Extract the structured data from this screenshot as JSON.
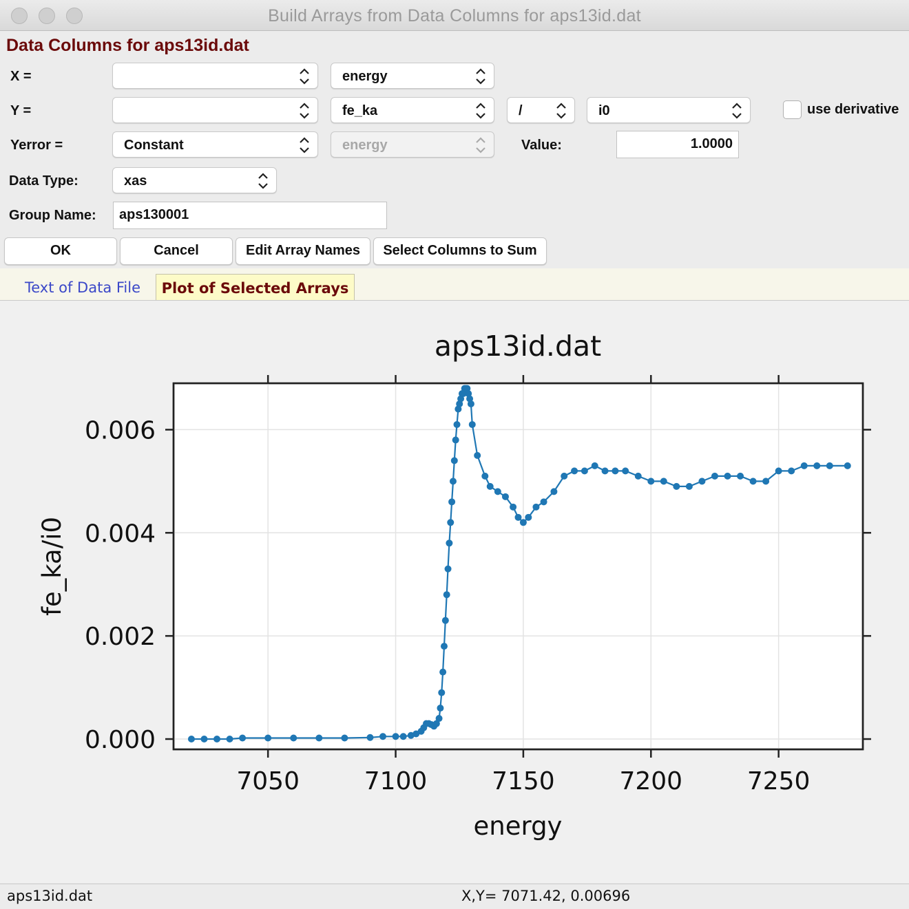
{
  "window": {
    "title": "Build Arrays from Data Columns for aps13id.dat"
  },
  "section_title": "Data Columns for aps13id.dat",
  "rows": {
    "x": {
      "label": "X =",
      "first": "",
      "second": "energy"
    },
    "y": {
      "label": "Y =",
      "first": "",
      "second": "fe_ka",
      "op": "/",
      "third": "i0",
      "derivative_label": "use derivative",
      "derivative_checked": false
    },
    "yerror": {
      "label": "Yerror =",
      "type": "Constant",
      "column": "energy",
      "value_label": "Value:",
      "value": "1.0000"
    },
    "datatype": {
      "label": "Data Type:",
      "value": "xas"
    },
    "groupname": {
      "label": "Group Name:",
      "value": "aps130001"
    }
  },
  "buttons": {
    "ok": "OK",
    "cancel": "Cancel",
    "edit": "Edit Array Names",
    "sum": "Select Columns to Sum"
  },
  "tabs": [
    {
      "label": "Text of Data File",
      "active": false
    },
    {
      "label": "Plot of Selected Arrays",
      "active": true
    }
  ],
  "status": {
    "left": "aps13id.dat",
    "right": "X,Y= 7071.42, 0.00696"
  },
  "colors": {
    "series": "#1f77b4",
    "title_red": "#6b0a0a",
    "tab_blue": "#3b48c8",
    "tab_active_bg": "#fdfbc8"
  },
  "chart_data": {
    "type": "line",
    "title": "aps13id.dat",
    "xlabel": "energy",
    "ylabel": "fe_ka/i0",
    "xlim": [
      7013,
      7283
    ],
    "ylim": [
      -0.0002,
      0.0069
    ],
    "xticks": [
      7050,
      7100,
      7150,
      7200,
      7250
    ],
    "xtick_labels": [
      "7050",
      "7100",
      "7150",
      "7200",
      "7250"
    ],
    "yticks": [
      0,
      0.002,
      0.004,
      0.006
    ],
    "ytick_labels": [
      "0.000",
      "0.002",
      "0.004",
      "0.006"
    ],
    "grid": true,
    "markers": true,
    "series": [
      {
        "x": [
          7020,
          7025,
          7030,
          7035,
          7040,
          7050,
          7060,
          7070,
          7080,
          7090,
          7095,
          7100,
          7103,
          7106,
          7108,
          7110,
          7111,
          7112,
          7113,
          7114,
          7115,
          7116,
          7117,
          7117.5,
          7118,
          7118.5,
          7119,
          7119.5,
          7120,
          7120.5,
          7121,
          7121.5,
          7122,
          7122.5,
          7123,
          7123.5,
          7124,
          7124.5,
          7125,
          7125.5,
          7126,
          7126.5,
          7127,
          7127.5,
          7128,
          7128.5,
          7129,
          7129.5,
          7130,
          7132,
          7135,
          7137,
          7140,
          7143,
          7146,
          7148,
          7150,
          7152,
          7155,
          7158,
          7162,
          7166,
          7170,
          7174,
          7178,
          7182,
          7186,
          7190,
          7195,
          7200,
          7205,
          7210,
          7215,
          7220,
          7225,
          7230,
          7235,
          7240,
          7245,
          7250,
          7255,
          7260,
          7265,
          7270,
          7277
        ],
        "y": [
          0,
          0,
          0,
          0,
          2e-05,
          2e-05,
          2e-05,
          2e-05,
          2e-05,
          3e-05,
          5e-05,
          5e-05,
          5e-05,
          7e-05,
          0.0001,
          0.00015,
          0.00022,
          0.0003,
          0.0003,
          0.00028,
          0.00025,
          0.0003,
          0.0004,
          0.0006,
          0.0009,
          0.0013,
          0.0018,
          0.0023,
          0.0028,
          0.0033,
          0.0038,
          0.0042,
          0.0046,
          0.005,
          0.0054,
          0.0058,
          0.0061,
          0.0064,
          0.0065,
          0.0066,
          0.0067,
          0.0067,
          0.0068,
          0.0068,
          0.0068,
          0.0067,
          0.0066,
          0.0065,
          0.0061,
          0.0055,
          0.0051,
          0.0049,
          0.0048,
          0.0047,
          0.0045,
          0.0043,
          0.0042,
          0.0043,
          0.0045,
          0.0046,
          0.0048,
          0.0051,
          0.0052,
          0.0052,
          0.0053,
          0.0052,
          0.0052,
          0.0052,
          0.0051,
          0.005,
          0.005,
          0.0049,
          0.0049,
          0.005,
          0.0051,
          0.0051,
          0.0051,
          0.005,
          0.005,
          0.0052,
          0.0052,
          0.0053,
          0.0053,
          0.0053,
          0.0053
        ]
      }
    ]
  }
}
